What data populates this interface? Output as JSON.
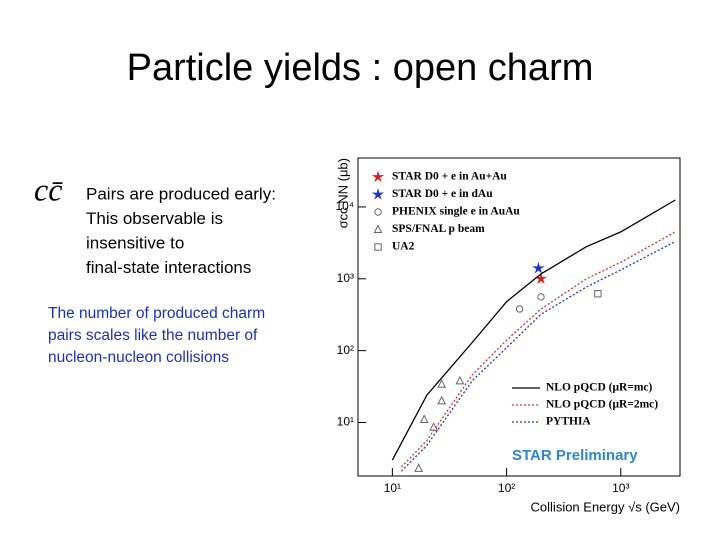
{
  "title": "Particle yields : open charm",
  "symbol": "cc̄",
  "bullet_lines": [
    "Pairs are produced early:",
    "This observable is",
    "insensitive to",
    "final-state interactions"
  ],
  "note_lines": [
    "The number of produced charm",
    "pairs scales like the number of",
    "nucleon-nucleon collisions"
  ],
  "chart_data": {
    "type": "scatter",
    "xlabel": "Collision Energy √s (GeV)",
    "ylabel": "σcc NN (μb)",
    "annotation": "STAR Preliminary",
    "xscale": "log",
    "yscale": "log",
    "xlim": [
      5,
      3300
    ],
    "ylim": [
      1.8,
      48000
    ],
    "xticks": [
      {
        "value": 10,
        "label": "10¹"
      },
      {
        "value": 100,
        "label": "10²"
      },
      {
        "value": 1000,
        "label": "10³"
      }
    ],
    "yticks": [
      {
        "value": 10,
        "label": "10¹"
      },
      {
        "value": 100,
        "label": "10²"
      },
      {
        "value": 1000,
        "label": "10³"
      },
      {
        "value": 10000,
        "label": "10⁴"
      }
    ],
    "series": [
      {
        "name": "STAR D0 + e in Au+Au",
        "color": "#e41a1c",
        "marker": "star",
        "x": [
          200
        ],
        "y": [
          1000
        ]
      },
      {
        "name": "STAR D0 + e in dAu",
        "color": "#1f2ee0",
        "marker": "star",
        "x": [
          190
        ],
        "y": [
          1400
        ]
      },
      {
        "name": "PHENIX single e in AuAu",
        "color": "#666666",
        "marker": "circle",
        "x": [
          130,
          200
        ],
        "y": [
          380,
          560
        ]
      },
      {
        "name": "SPS/FNAL p beam",
        "color": "#666666",
        "marker": "triangle",
        "x": [
          17,
          19,
          23,
          27,
          27,
          39
        ],
        "y": [
          2.3,
          11,
          8.6,
          20,
          34,
          38
        ]
      },
      {
        "name": "UA2",
        "color": "#666666",
        "marker": "square",
        "x": [
          630
        ],
        "y": [
          620
        ]
      },
      {
        "name": "NLO pQCD (μR=mc)",
        "color": "#000000",
        "line": "solid",
        "x": [
          10,
          20,
          50,
          100,
          200,
          500,
          1000,
          3000
        ],
        "y": [
          3,
          24,
          130,
          480,
          1170,
          2800,
          4500,
          12500
        ]
      },
      {
        "name": "NLO pQCD (μR=2mc)",
        "color": "#e03030",
        "line": "dotted",
        "x": [
          12,
          20,
          50,
          100,
          200,
          500,
          1000,
          3000
        ],
        "y": [
          2.4,
          5.6,
          46,
          140,
          380,
          1000,
          1700,
          4500
        ]
      },
      {
        "name": "PYTHIA",
        "color": "#3030c0",
        "line": "dotted",
        "x": [
          12,
          20,
          50,
          100,
          200,
          500,
          1000,
          3000
        ],
        "y": [
          2.1,
          4.8,
          38,
          110,
          320,
          770,
          1330,
          3300
        ]
      }
    ]
  }
}
